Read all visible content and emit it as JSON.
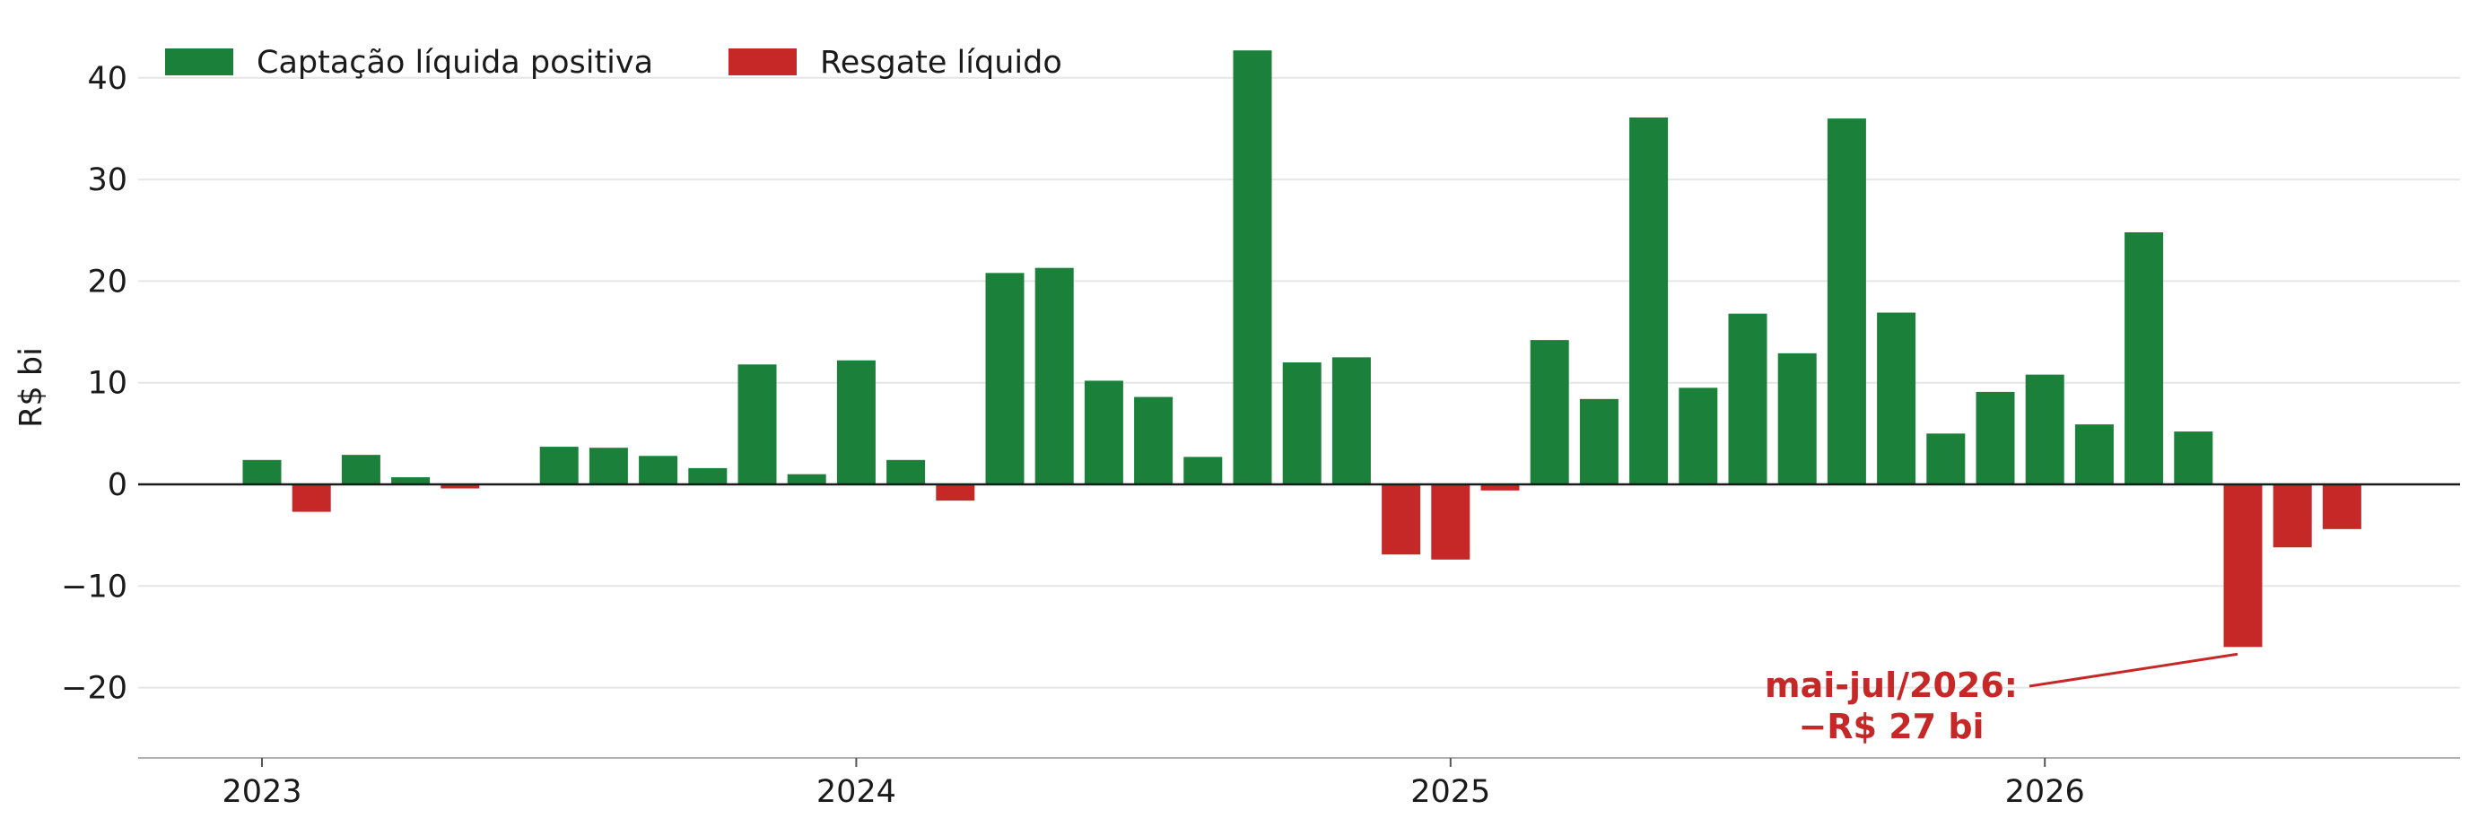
{
  "chart_data": {
    "type": "bar",
    "ylabel": "R$ bi",
    "xlabel": "",
    "ylim": [
      -27,
      44
    ],
    "yticks": [
      -20,
      -10,
      0,
      10,
      20,
      30,
      40
    ],
    "ytick_labels": [
      "−20",
      "−10",
      "0",
      "10",
      "20",
      "30",
      "40"
    ],
    "xticks": [
      {
        "month": "2023-01",
        "label": "2023"
      },
      {
        "month": "2024-01",
        "label": "2024"
      },
      {
        "month": "2025-01",
        "label": "2025"
      },
      {
        "month": "2026-01",
        "label": "2026"
      }
    ],
    "grid": "horizontal",
    "legend_position": "top-left",
    "colors": {
      "positive": "#1b813a",
      "negative": "#c62828",
      "annotation": "#c62828"
    },
    "legend": [
      {
        "label": "Captação líquida positiva",
        "color": "#1b813a"
      },
      {
        "label": "Resgate líquido",
        "color": "#c62828"
      }
    ],
    "months": [
      "2023-01",
      "2023-02",
      "2023-03",
      "2023-04",
      "2023-05",
      "2023-06",
      "2023-07",
      "2023-08",
      "2023-09",
      "2023-10",
      "2023-11",
      "2023-12",
      "2024-01",
      "2024-02",
      "2024-03",
      "2024-04",
      "2024-05",
      "2024-06",
      "2024-07",
      "2024-08",
      "2024-09",
      "2024-10",
      "2024-11",
      "2024-12",
      "2025-01",
      "2025-02",
      "2025-03",
      "2025-04",
      "2025-05",
      "2025-06",
      "2025-07",
      "2025-08",
      "2025-09",
      "2025-10",
      "2025-11",
      "2025-12",
      "2026-01",
      "2026-02",
      "2026-03",
      "2026-04",
      "2026-05",
      "2026-06",
      "2026-07"
    ],
    "values": [
      2.4,
      -2.7,
      2.9,
      0.7,
      -0.4,
      0.0,
      3.7,
      3.6,
      2.8,
      1.6,
      11.8,
      1.0,
      12.2,
      2.4,
      -1.6,
      20.8,
      21.3,
      10.2,
      8.6,
      2.7,
      42.7,
      12.0,
      12.5,
      -6.9,
      -7.4,
      -0.6,
      14.2,
      8.4,
      36.1,
      9.5,
      16.8,
      12.9,
      36.0,
      16.9,
      5.0,
      9.1,
      10.8,
      5.9,
      24.8,
      5.2,
      -16.0,
      -6.2,
      -4.4
    ],
    "annotation": {
      "lines": [
        "mai-jul/2026:",
        "−R$ 27 bi"
      ],
      "target_month": "2026-05",
      "target_value": -16.0
    }
  }
}
